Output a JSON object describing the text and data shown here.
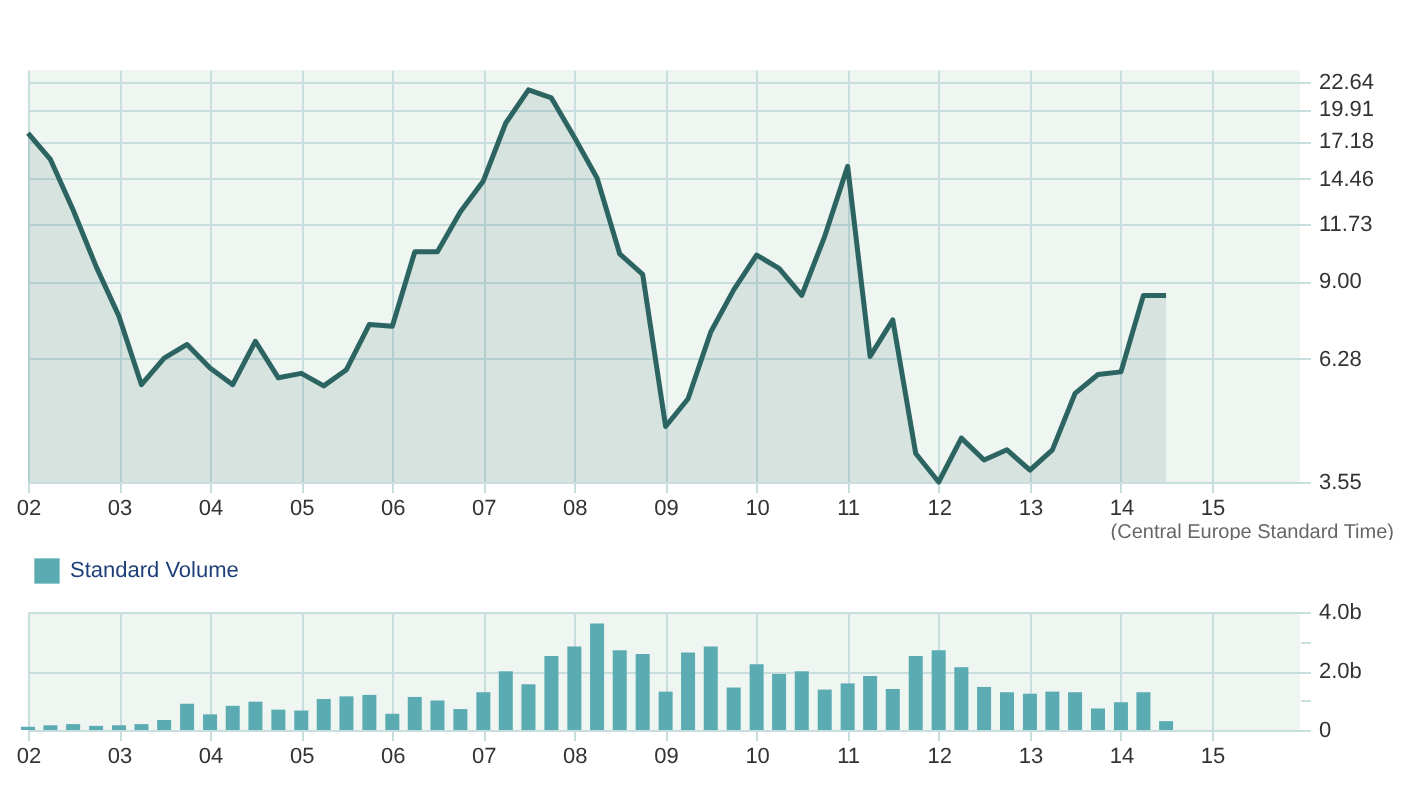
{
  "chart_data": [
    {
      "type": "area",
      "x": [
        "2002-01",
        "2002-04",
        "2002-07",
        "2002-10",
        "2003-01",
        "2003-04",
        "2003-07",
        "2003-10",
        "2004-01",
        "2004-04",
        "2004-07",
        "2004-10",
        "2005-01",
        "2005-04",
        "2005-07",
        "2005-10",
        "2006-01",
        "2006-04",
        "2006-07",
        "2006-10",
        "2007-01",
        "2007-04",
        "2007-07",
        "2007-10",
        "2008-01",
        "2008-04",
        "2008-07",
        "2008-10",
        "2009-01",
        "2009-04",
        "2009-07",
        "2009-10",
        "2010-01",
        "2010-04",
        "2010-07",
        "2010-10",
        "2011-01",
        "2011-04",
        "2011-07",
        "2011-10",
        "2012-01",
        "2012-04",
        "2012-07",
        "2012-10",
        "2013-01",
        "2013-04",
        "2013-07",
        "2013-10",
        "2014-01",
        "2014-04",
        "2014-07"
      ],
      "series": [
        {
          "color": "#2b6461",
          "values": [
            17.85,
            15.8,
            12.5,
            9.63,
            7.64,
            5.57,
            6.3,
            6.71,
            6.02,
            5.57,
            6.81,
            5.75,
            5.87,
            5.54,
            5.97,
            7.36,
            7.3,
            10.3,
            10.3,
            12.4,
            14.3,
            18.7,
            21.8,
            21.0,
            17.5,
            14.5,
            10.2,
            9.28,
            4.59,
            5.22,
            7.11,
            8.64,
            10.15,
            9.54,
            8.42,
            11.07,
            15.3,
            6.35,
            7.52,
            4.05,
            3.55,
            4.35,
            3.93,
            4.12,
            3.75,
            4.12,
            5.35,
            5.84,
            5.91,
            8.42,
            8.42
          ]
        }
      ],
      "xlim": [
        "2002-01",
        "2015-12-20"
      ],
      "xticks": [
        {
          "value": "2002",
          "label": "02"
        },
        {
          "value": "2003",
          "label": "03"
        },
        {
          "value": "2004",
          "label": "04"
        },
        {
          "value": "2005",
          "label": "05"
        },
        {
          "value": "2006",
          "label": "06"
        },
        {
          "value": "2007",
          "label": "07"
        },
        {
          "value": "2008",
          "label": "08"
        },
        {
          "value": "2009",
          "label": "09"
        },
        {
          "value": "2010",
          "label": "10"
        },
        {
          "value": "2011",
          "label": "11"
        },
        {
          "value": "2012",
          "label": "12"
        },
        {
          "value": "2013",
          "label": "13"
        },
        {
          "value": "2014",
          "label": "14"
        },
        {
          "value": "2015",
          "label": "15"
        }
      ],
      "ylim": [
        3.55,
        23.9
      ],
      "log": true,
      "yticks": [
        3.55,
        6.28,
        {
          "value": 9,
          "label": "9.00"
        },
        11.73,
        14.46,
        17.18,
        19.91,
        22.64
      ],
      "grid": true,
      "annotations": [
        "(Central Europe Standard Time)"
      ]
    },
    {
      "type": "bar",
      "x": [
        "2002-01",
        "2002-04",
        "2002-07",
        "2002-10",
        "2003-01",
        "2003-04",
        "2003-07",
        "2003-10",
        "2004-01",
        "2004-04",
        "2004-07",
        "2004-10",
        "2005-01",
        "2005-04",
        "2005-07",
        "2005-10",
        "2006-01",
        "2006-04",
        "2006-07",
        "2006-10",
        "2007-01",
        "2007-04",
        "2007-07",
        "2007-10",
        "2008-01",
        "2008-04",
        "2008-07",
        "2008-10",
        "2009-01",
        "2009-04",
        "2009-07",
        "2009-10",
        "2010-01",
        "2010-04",
        "2010-07",
        "2010-10",
        "2011-01",
        "2011-04",
        "2011-07",
        "2011-10",
        "2012-01",
        "2012-04",
        "2012-07",
        "2012-10",
        "2013-01",
        "2013-04",
        "2013-07",
        "2013-10",
        "2014-01",
        "2014-04",
        "2014-07"
      ],
      "series": [
        {
          "name": "Standard Volume",
          "color": "#5aacb2",
          "values": [
            0.11,
            0.16,
            0.2,
            0.14,
            0.16,
            0.2,
            0.34,
            0.89,
            0.53,
            0.82,
            0.96,
            0.69,
            0.66,
            1.05,
            1.14,
            1.19,
            0.55,
            1.12,
            1.0,
            0.71,
            1.28,
            1.99,
            1.55,
            2.51,
            2.83,
            3.61,
            2.7,
            2.58,
            1.3,
            2.63,
            2.83,
            1.44,
            2.23,
            1.9,
            1.99,
            1.37,
            1.58,
            1.83,
            1.39,
            2.51,
            2.7,
            2.13,
            1.46,
            1.28,
            1.23,
            1.3,
            1.28,
            0.73,
            0.94,
            1.28,
            0.3
          ]
        }
      ],
      "xlim": [
        "2002-01",
        "2015-12-20"
      ],
      "xticks": [
        {
          "value": "2002",
          "label": "02"
        },
        {
          "value": "2003",
          "label": "03"
        },
        {
          "value": "2004",
          "label": "04"
        },
        {
          "value": "2005",
          "label": "05"
        },
        {
          "value": "2006",
          "label": "06"
        },
        {
          "value": "2007",
          "label": "07"
        },
        {
          "value": "2008",
          "label": "08"
        },
        {
          "value": "2009",
          "label": "09"
        },
        {
          "value": "2010",
          "label": "10"
        },
        {
          "value": "2011",
          "label": "11"
        },
        {
          "value": "2012",
          "label": "12"
        },
        {
          "value": "2013",
          "label": "13"
        },
        {
          "value": "2014",
          "label": "14"
        },
        {
          "value": "2015",
          "label": "15"
        }
      ],
      "ylim": [
        0,
        4
      ],
      "yticks": [
        0,
        {
          "value": 1,
          "label": null
        },
        {
          "value": 2,
          "label": "2.0b"
        },
        {
          "value": 3,
          "label": null
        },
        {
          "value": 4,
          "label": "4.0b"
        }
      ],
      "grid": true,
      "legend": "top left"
    }
  ]
}
